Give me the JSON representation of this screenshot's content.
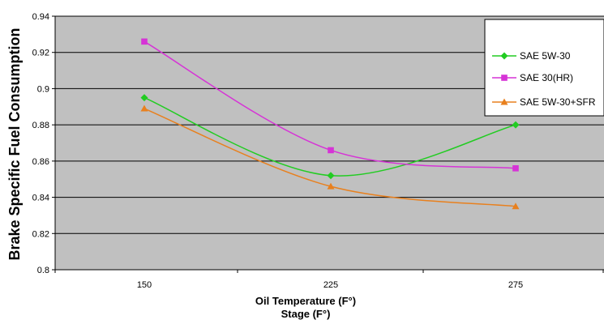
{
  "chart_data": {
    "type": "line",
    "title": "",
    "xlabel_line1": "Oil Temperature (F°)",
    "xlabel_line2": "Stage (F°)",
    "ylabel": "Brake Specific Fuel Consumption",
    "categories": [
      "150",
      "225",
      "275"
    ],
    "ylim": [
      0.8,
      0.94
    ],
    "yticks": [
      "0.8",
      "0.82",
      "0.84",
      "0.86",
      "0.88",
      "0.9",
      "0.92",
      "0.94"
    ],
    "grid": true,
    "legend_position": "top-right",
    "series": [
      {
        "name": "SAE 5W-30",
        "values": [
          0.895,
          0.852,
          0.88
        ],
        "color": "#22cc22",
        "marker": "diamond"
      },
      {
        "name": "SAE 30(HR)",
        "values": [
          0.926,
          0.866,
          0.856
        ],
        "color": "#d633d6",
        "marker": "square"
      },
      {
        "name": "SAE 5W-30+SFR",
        "values": [
          0.889,
          0.846,
          0.835
        ],
        "color": "#e8801e",
        "marker": "triangle"
      }
    ],
    "plot_background": "#c0c0c0"
  }
}
